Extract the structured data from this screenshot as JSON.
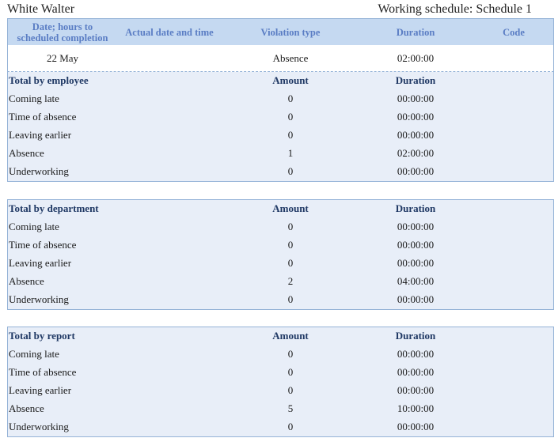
{
  "header": {
    "employee": "White Walter",
    "schedule": "Working schedule: Schedule 1"
  },
  "columns": [
    "Date; hours to scheduled completion",
    "Actual date and time",
    "Violation type",
    "Duration",
    "Code"
  ],
  "violations": [
    {
      "date": "22 May",
      "actual": "",
      "type": "Absence",
      "duration": "02:00:00",
      "code": ""
    }
  ],
  "sections": [
    {
      "title": "Total by employee",
      "amount_label": "Amount",
      "duration_label": "Duration",
      "rows": [
        {
          "label": "Coming late",
          "amount": "0",
          "duration": "00:00:00"
        },
        {
          "label": "Time of absence",
          "amount": "0",
          "duration": "00:00:00"
        },
        {
          "label": "Leaving earlier",
          "amount": "0",
          "duration": "00:00:00"
        },
        {
          "label": "Absence",
          "amount": "1",
          "duration": "02:00:00"
        },
        {
          "label": "Underworking",
          "amount": "0",
          "duration": "00:00:00"
        }
      ]
    },
    {
      "title": "Total by department",
      "amount_label": "Amount",
      "duration_label": "Duration",
      "rows": [
        {
          "label": "Coming late",
          "amount": "0",
          "duration": "00:00:00"
        },
        {
          "label": "Time of absence",
          "amount": "0",
          "duration": "00:00:00"
        },
        {
          "label": "Leaving earlier",
          "amount": "0",
          "duration": "00:00:00"
        },
        {
          "label": "Absence",
          "amount": "2",
          "duration": "04:00:00"
        },
        {
          "label": "Underworking",
          "amount": "0",
          "duration": "00:00:00"
        }
      ]
    },
    {
      "title": "Total by report",
      "amount_label": "Amount",
      "duration_label": "Duration",
      "rows": [
        {
          "label": "Coming late",
          "amount": "0",
          "duration": "00:00:00"
        },
        {
          "label": "Time of absence",
          "amount": "0",
          "duration": "00:00:00"
        },
        {
          "label": "Leaving earlier",
          "amount": "0",
          "duration": "00:00:00"
        },
        {
          "label": "Absence",
          "amount": "5",
          "duration": "10:00:00"
        },
        {
          "label": "Underworking",
          "amount": "0",
          "duration": "00:00:00"
        }
      ]
    }
  ],
  "colors": {
    "header_bg": "#c5d9f1",
    "header_text": "#5a7dc4",
    "section_bg": "#e8eef8",
    "border": "#95b3d7"
  }
}
